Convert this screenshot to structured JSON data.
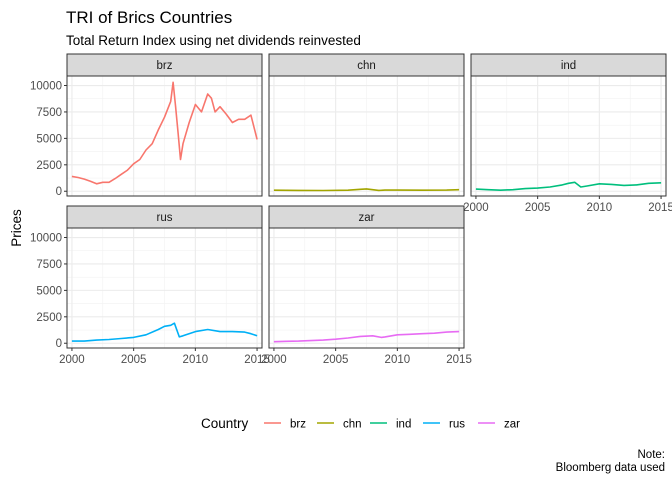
{
  "chart_data": {
    "type": "line",
    "title": "TRI of Brics Countries",
    "subtitle": "Total Return Index using net dividends reinvested",
    "xlabel": "",
    "ylabel": "Prices",
    "caption": [
      "Note:",
      "Bloomberg data used"
    ],
    "facet_by": "Country",
    "panels": [
      "brz",
      "chn",
      "ind",
      "rus",
      "zar"
    ],
    "xlim": [
      1999.6,
      2015.4
    ],
    "ylim": [
      -450,
      10900
    ],
    "x_ticks": [
      2000,
      2005,
      2010,
      2015
    ],
    "y_ticks": [
      0,
      2500,
      5000,
      7500,
      10000
    ],
    "grid": true,
    "legend": {
      "title": "Country",
      "position": "bottom",
      "entries": [
        "brz",
        "chn",
        "ind",
        "rus",
        "zar"
      ]
    },
    "colors": {
      "brz": "#F8766D",
      "chn": "#A3A500",
      "ind": "#00BF7D",
      "rus": "#00B0F6",
      "zar": "#E76BF3"
    },
    "series": [
      {
        "name": "brz",
        "x": [
          2000,
          2000.5,
          2001,
          2001.5,
          2002,
          2002.5,
          2003,
          2003.5,
          2004,
          2004.5,
          2005,
          2005.5,
          2006,
          2006.5,
          2007,
          2007.5,
          2008,
          2008.2,
          2008.4,
          2008.6,
          2008.8,
          2009,
          2009.5,
          2010,
          2010.5,
          2011,
          2011.3,
          2011.6,
          2012,
          2012.5,
          2013,
          2013.5,
          2014,
          2014.5,
          2015
        ],
        "y": [
          1400,
          1300,
          1150,
          950,
          700,
          850,
          850,
          1200,
          1600,
          2000,
          2600,
          3000,
          3900,
          4500,
          5800,
          7000,
          8500,
          10300,
          8000,
          5500,
          3000,
          4500,
          6500,
          8200,
          7500,
          9200,
          8800,
          7500,
          8000,
          7300,
          6500,
          6800,
          6800,
          7200,
          4900
        ]
      },
      {
        "name": "chn",
        "x": [
          2000,
          2002,
          2004,
          2006,
          2007,
          2007.5,
          2008,
          2008.5,
          2009,
          2010,
          2012,
          2014,
          2015
        ],
        "y": [
          100,
          80,
          70,
          100,
          180,
          220,
          150,
          80,
          110,
          110,
          100,
          110,
          150
        ]
      },
      {
        "name": "ind",
        "x": [
          2000,
          2001,
          2002,
          2003,
          2004,
          2005,
          2006,
          2007,
          2007.5,
          2008,
          2008.5,
          2009,
          2010,
          2011,
          2012,
          2013,
          2014,
          2015
        ],
        "y": [
          200,
          150,
          100,
          150,
          250,
          300,
          400,
          600,
          750,
          850,
          400,
          500,
          700,
          650,
          550,
          600,
          750,
          800
        ]
      },
      {
        "name": "rus",
        "x": [
          2000,
          2001,
          2002,
          2003,
          2004,
          2005,
          2006,
          2007,
          2007.5,
          2008,
          2008.3,
          2008.7,
          2009,
          2010,
          2011,
          2012,
          2013,
          2014,
          2014.5,
          2015
        ],
        "y": [
          200,
          200,
          300,
          350,
          450,
          550,
          800,
          1300,
          1600,
          1700,
          1900,
          600,
          700,
          1100,
          1300,
          1100,
          1100,
          1050,
          900,
          700
        ]
      },
      {
        "name": "zar",
        "x": [
          2000,
          2001,
          2002,
          2003,
          2004,
          2005,
          2006,
          2007,
          2008,
          2008.7,
          2009,
          2010,
          2011,
          2012,
          2013,
          2014,
          2015
        ],
        "y": [
          150,
          180,
          200,
          250,
          300,
          380,
          500,
          650,
          700,
          550,
          600,
          800,
          850,
          900,
          950,
          1050,
          1100
        ]
      }
    ]
  }
}
